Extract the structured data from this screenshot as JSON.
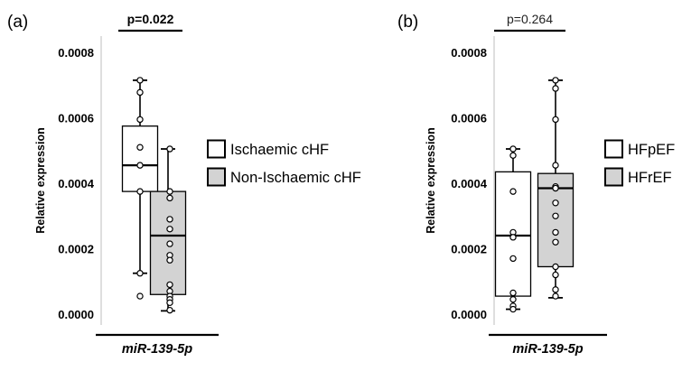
{
  "chart_data": [
    {
      "panel_label": "(a)",
      "type": "box",
      "ylabel": "Relative expression",
      "ylim": [
        0,
        0.00085
      ],
      "yticks": [
        "0.0000",
        "0.0002",
        "0.0004",
        "0.0006",
        "0.0008"
      ],
      "ytick_values": [
        0,
        0.0002,
        0.0004,
        0.0006,
        0.0008
      ],
      "category_label": "miR-139-5p",
      "p_value": "p=0.022",
      "p_value_bold": true,
      "grid": false,
      "legend_position": "right",
      "series": [
        {
          "name": "Ischaemic cHF",
          "color": "#ffffff",
          "box": {
            "whisker_low": 0.000125,
            "q1": 0.000375,
            "median": 0.000455,
            "q3": 0.000575,
            "whisker_high": 0.000715
          },
          "points": [
            0.000715,
            0.000678,
            0.000595,
            0.00051,
            0.000455,
            0.000375,
            0.000125,
            5.5e-05
          ]
        },
        {
          "name": "Non-Ischaemic cHF",
          "color": "#d3d3d3",
          "box": {
            "whisker_low": 1e-05,
            "q1": 6e-05,
            "median": 0.00024,
            "q3": 0.000375,
            "whisker_high": 0.000505
          },
          "points": [
            0.000505,
            0.000375,
            0.000355,
            0.00029,
            0.00026,
            0.000215,
            0.00018,
            0.000165,
            9e-05,
            7e-05,
            5.5e-05,
            4.5e-05,
            3.5e-05,
            1.2e-05
          ]
        }
      ]
    },
    {
      "panel_label": "(b)",
      "type": "box",
      "ylabel": "Relative expression",
      "ylim": [
        0,
        0.00085
      ],
      "yticks": [
        "0.0000",
        "0.0002",
        "0.0004",
        "0.0006",
        "0.0008"
      ],
      "ytick_values": [
        0,
        0.0002,
        0.0004,
        0.0006,
        0.0008
      ],
      "category_label": "miR-139-5p",
      "p_value": "p=0.264",
      "p_value_bold": false,
      "grid": false,
      "legend_position": "right",
      "series": [
        {
          "name": "HFpEF",
          "color": "#ffffff",
          "box": {
            "whisker_low": 1.5e-05,
            "q1": 5.5e-05,
            "median": 0.00024,
            "q3": 0.000435,
            "whisker_high": 0.000505
          },
          "points": [
            0.000505,
            0.000485,
            0.000375,
            0.00025,
            0.000235,
            0.00017,
            6.5e-05,
            4.5e-05,
            2.5e-05,
            1.5e-05
          ]
        },
        {
          "name": "HFrEF",
          "color": "#d3d3d3",
          "box": {
            "whisker_low": 5e-05,
            "q1": 0.000145,
            "median": 0.000385,
            "q3": 0.00043,
            "whisker_high": 0.000715
          },
          "points": [
            0.000715,
            0.00069,
            0.000595,
            0.000455,
            0.00039,
            0.000385,
            0.00034,
            0.0003,
            0.00025,
            0.00022,
            0.000145,
            0.00012,
            7.5e-05,
            5.5e-05
          ]
        }
      ]
    }
  ]
}
